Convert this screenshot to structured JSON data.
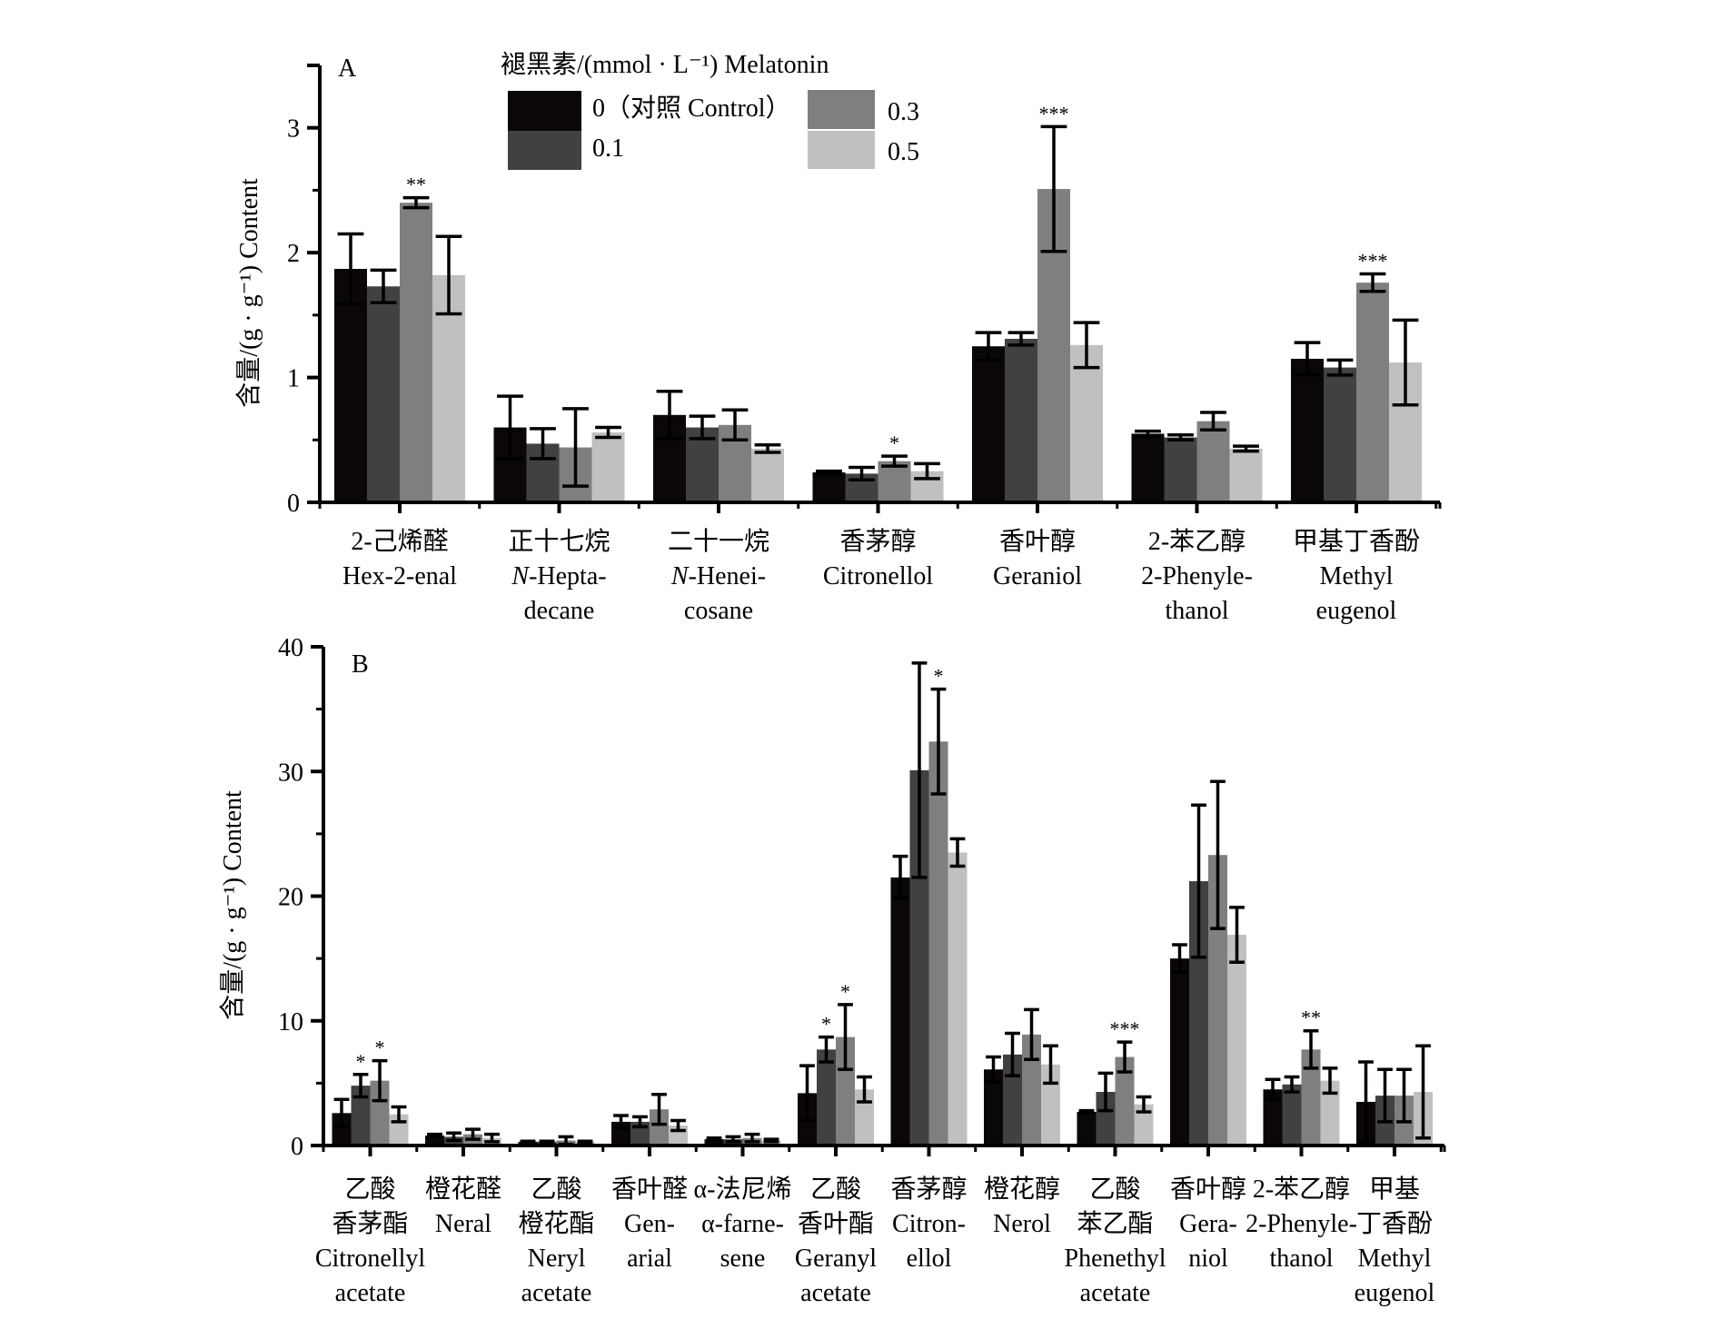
{
  "legend": {
    "title": "褪黑素/(mmol · L⁻¹) Melatonin",
    "entries": [
      {
        "label": "0（对照 Control）",
        "color": "#0a0706"
      },
      {
        "label": "0.1",
        "color": "#404143"
      },
      {
        "label": "0.3",
        "color": "#7f7f7f"
      },
      {
        "label": "0.5",
        "color": "#c0c0c0"
      }
    ]
  },
  "chart_data": [
    {
      "type": "bar",
      "panel": "A",
      "title": "",
      "xlabel": "",
      "ylabel": "含量/(g · g⁻¹) Content",
      "ylim": [
        0,
        3.5
      ],
      "yticks": [
        0,
        1,
        2,
        3
      ],
      "yticks_labels": [
        "0",
        "1",
        "2",
        "3"
      ],
      "grid": false,
      "legend_position": "top-center",
      "categories": [
        [
          "2-己烯醛",
          "Hex-2-enal"
        ],
        [
          "正十七烷",
          "N-Hepta-",
          "decane"
        ],
        [
          "二十一烷",
          "N-Henei-",
          "cosane"
        ],
        [
          "香茅醇",
          "Citronellol"
        ],
        [
          "香叶醇",
          "Geraniol"
        ],
        [
          "2-苯乙醇",
          "2-Phenyle-",
          "thanol"
        ],
        [
          "甲基丁香酚",
          "Methyl",
          "eugenol"
        ]
      ],
      "series": [
        {
          "name": "0（对照 Control）",
          "values": [
            1.87,
            0.6,
            0.7,
            0.24,
            1.25,
            0.55,
            1.15
          ],
          "errors": [
            0.28,
            0.25,
            0.19,
            0.01,
            0.11,
            0.02,
            0.13
          ]
        },
        {
          "name": "0.1",
          "values": [
            1.73,
            0.47,
            0.6,
            0.23,
            1.31,
            0.52,
            1.08
          ],
          "errors": [
            0.13,
            0.12,
            0.09,
            0.05,
            0.05,
            0.02,
            0.06
          ]
        },
        {
          "name": "0.3",
          "values": [
            2.4,
            0.44,
            0.62,
            0.33,
            2.51,
            0.65,
            1.76
          ],
          "errors": [
            0.04,
            0.31,
            0.12,
            0.04,
            0.5,
            0.07,
            0.07
          ]
        },
        {
          "name": "0.5",
          "values": [
            1.82,
            0.56,
            0.43,
            0.25,
            1.26,
            0.43,
            1.12
          ],
          "errors": [
            0.31,
            0.04,
            0.03,
            0.06,
            0.18,
            0.02,
            0.34
          ]
        }
      ],
      "annotations": [
        {
          "category": 0,
          "series": 2,
          "text": "**"
        },
        {
          "category": 3,
          "series": 2,
          "text": "*"
        },
        {
          "category": 4,
          "series": 2,
          "text": "***"
        },
        {
          "category": 6,
          "series": 2,
          "text": "***"
        }
      ]
    },
    {
      "type": "bar",
      "panel": "B",
      "title": "",
      "xlabel": "",
      "ylabel": "含量/(g · g⁻¹) Content",
      "ylim": [
        0,
        40
      ],
      "yticks": [
        0,
        10,
        20,
        30,
        40
      ],
      "yticks_labels": [
        "0",
        "10",
        "20",
        "30",
        "40"
      ],
      "grid": false,
      "categories": [
        [
          "乙酸",
          "香茅酯",
          "Citronellyl",
          "acetate"
        ],
        [
          "橙花醛",
          "Neral"
        ],
        [
          "乙酸",
          "橙花酯",
          "Neryl",
          "acetate"
        ],
        [
          "香叶醛",
          "Gen-",
          "arial"
        ],
        [
          "α-法尼烯",
          "α-farne-",
          "sene"
        ],
        [
          "乙酸",
          "香叶酯",
          "Geranyl",
          "acetate"
        ],
        [
          "香茅醇",
          "Citron-",
          "ellol"
        ],
        [
          "橙花醇",
          "Nerol"
        ],
        [
          "乙酸",
          "苯乙酯",
          "Phenethyl",
          "acetate"
        ],
        [
          "香叶醇",
          "Gera-",
          "niol"
        ],
        [
          "2-苯乙醇",
          "2-Phenyle-",
          "thanol"
        ],
        [
          "甲基",
          "丁香酚",
          "Methyl",
          "eugenol"
        ]
      ],
      "series": [
        {
          "name": "0（对照 Control）",
          "values": [
            2.6,
            0.8,
            0.3,
            1.9,
            0.5,
            4.2,
            21.5,
            6.1,
            2.7,
            15.0,
            4.5,
            3.5
          ],
          "errors": [
            1.1,
            0.1,
            0.05,
            0.5,
            0.1,
            2.2,
            1.7,
            1.0,
            0.1,
            1.1,
            0.8,
            3.2
          ]
        },
        {
          "name": "0.1",
          "values": [
            4.8,
            0.7,
            0.3,
            1.9,
            0.5,
            7.7,
            30.1,
            7.3,
            4.3,
            21.2,
            4.9,
            4.0
          ],
          "errors": [
            0.9,
            0.3,
            0.05,
            0.4,
            0.2,
            1.0,
            8.6,
            1.7,
            1.5,
            6.1,
            0.6,
            2.1
          ]
        },
        {
          "name": "0.3",
          "values": [
            5.2,
            0.9,
            0.4,
            2.9,
            0.6,
            8.7,
            32.4,
            8.9,
            7.1,
            23.3,
            7.7,
            4.0
          ],
          "errors": [
            1.6,
            0.4,
            0.3,
            1.2,
            0.3,
            2.6,
            4.2,
            2.0,
            1.2,
            5.9,
            1.5,
            2.1
          ]
        },
        {
          "name": "0.5",
          "values": [
            2.5,
            0.6,
            0.3,
            1.6,
            0.4,
            4.5,
            23.5,
            6.5,
            3.3,
            16.9,
            5.2,
            4.3
          ],
          "errors": [
            0.6,
            0.3,
            0.05,
            0.4,
            0.1,
            1.0,
            1.1,
            1.5,
            0.6,
            2.2,
            1.0,
            3.7
          ]
        }
      ],
      "annotations": [
        {
          "category": 0,
          "series": 1,
          "text": "*"
        },
        {
          "category": 0,
          "series": 2,
          "text": "*"
        },
        {
          "category": 5,
          "series": 1,
          "text": "*"
        },
        {
          "category": 5,
          "series": 2,
          "text": "*"
        },
        {
          "category": 6,
          "series": 2,
          "text": "*"
        },
        {
          "category": 8,
          "series": 2,
          "text": "***"
        },
        {
          "category": 10,
          "series": 2,
          "text": "**"
        }
      ]
    }
  ]
}
